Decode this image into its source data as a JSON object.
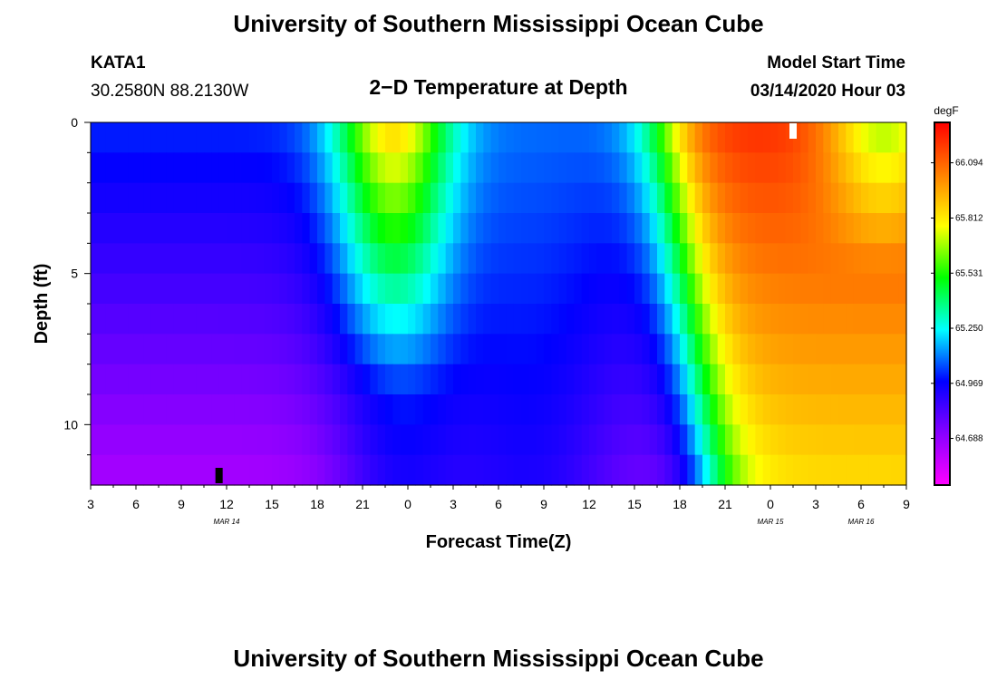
{
  "header": {
    "title_top": "University of Southern Mississippi Ocean Cube",
    "title_bottom": "University of Southern Mississippi Ocean Cube",
    "station_id": "KATA1",
    "station_coords": "30.2580N 88.2130W",
    "plot_title": "2−D Temperature at Depth",
    "model_start_label": "Model Start Time",
    "model_start_value": "03/14/2020 Hour 03"
  },
  "chart_data": {
    "type": "heatmap",
    "title": "2−D Temperature at Depth",
    "xlabel": "Forecast Time(Z)",
    "ylabel": "Depth (ft)",
    "colorbar_label": "degF",
    "x_start": "03/14/2020 Hour 03",
    "x_end": "03/16/2020 Hour 09",
    "x_tick_labels": [
      "3",
      "6",
      "9",
      "12",
      "15",
      "18",
      "21",
      "0",
      "3",
      "6",
      "9",
      "12",
      "15",
      "18",
      "21",
      "0",
      "3",
      "6",
      "9"
    ],
    "date_labels": [
      "MAR 14",
      "MAR 15",
      "MAR 16"
    ],
    "ylim": [
      0,
      12
    ],
    "y_ticks": [
      0,
      5,
      10
    ],
    "colorbar_ticks": [
      64.688,
      64.969,
      65.25,
      65.531,
      65.812,
      66.094
    ],
    "colorbar_range": [
      64.45,
      66.3
    ],
    "colormap": [
      "#ff00ff",
      "#8800ff",
      "#0000ff",
      "#00ffff",
      "#00ff00",
      "#ffff00",
      "#ff8000",
      "#ff0000"
    ],
    "depth_levels": [
      0.5,
      1.5,
      2.5,
      3.5,
      4.5,
      5.5,
      6.5,
      7.5,
      8.5,
      9.5,
      10.5,
      11.5
    ],
    "markers": [
      {
        "label": "black",
        "time_hours": 8.5,
        "depth": 11.7
      },
      {
        "label": "white",
        "time_hours": 46.5,
        "depth": 0.3
      }
    ]
  }
}
